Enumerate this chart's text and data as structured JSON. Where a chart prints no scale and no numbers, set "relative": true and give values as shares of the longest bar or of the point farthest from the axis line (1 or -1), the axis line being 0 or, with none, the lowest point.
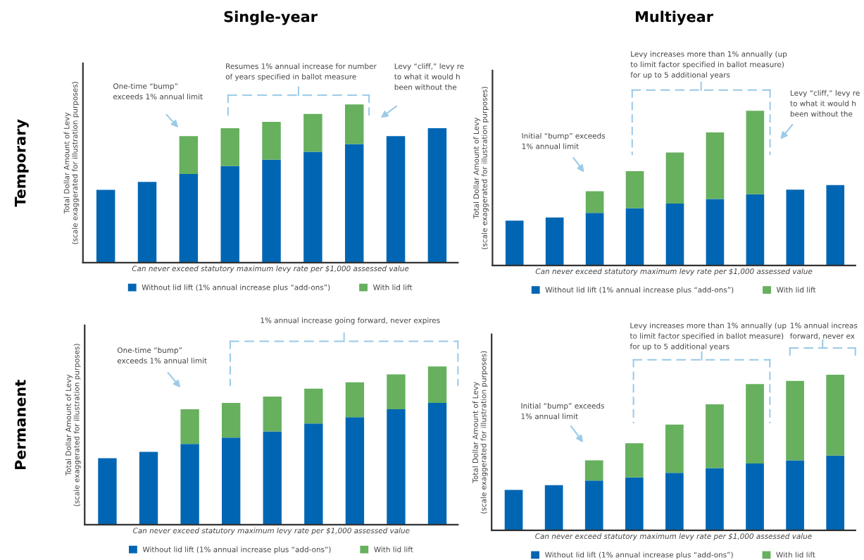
{
  "chart_data": [
    {
      "type": "bar",
      "title": "Single-year",
      "subtitle": "Temporary",
      "relative": true,
      "stacked": true,
      "legend": "bottom",
      "grid": false,
      "tick_labels": false,
      "ylabel": "Total Dollar Amount of Levy\n(scale exaggerated for illustration purposes)",
      "xlabel": "Can never exceed statutory maximum levy rate per $1,000 assessed value",
      "categories": [
        null,
        null,
        null,
        null,
        null,
        null,
        null,
        null,
        null
      ],
      "series": [
        {
          "name": "Without lid lift (1% annual increase plus “add-ons”)",
          "color": "#0066b3",
          "values": [
            0.46,
            0.51,
            0.56,
            0.61,
            0.65,
            0.7,
            0.75,
            0.8,
            0.85
          ]
        },
        {
          "name": "With lid lift",
          "color": "#66b05e",
          "values": [
            null,
            null,
            0.24,
            0.24,
            0.24,
            0.24,
            0.25,
            null,
            null
          ]
        }
      ],
      "annotations": [
        "One-time “bump”\nexceeds 1% annual limit",
        "Resumes 1% annual increase for number\nof years specified in ballot measure",
        "Levy “cliff,” levy re\nto what it would h\nbeen without the"
      ]
    },
    {
      "type": "bar",
      "title": "Multiyear",
      "relative": true,
      "stacked": true,
      "legend": "bottom",
      "grid": false,
      "tick_labels": false,
      "ylabel": "Total Dollar Amount of Levy\n(scale exaggerated for illustration purposes)",
      "xlabel": "Can never exceed statutory maximum levy rate per $1,000 assessed value",
      "categories": [
        null,
        null,
        null,
        null,
        null,
        null,
        null,
        null,
        null
      ],
      "series": [
        {
          "name": "Without lid lift (1% annual increase plus “add-ons”)",
          "color": "#0066b3",
          "values": [
            0.29,
            0.31,
            0.34,
            0.37,
            0.4,
            0.43,
            0.46,
            0.49,
            0.52
          ]
        },
        {
          "name": "With lid lift",
          "color": "#66b05e",
          "values": [
            null,
            null,
            0.14,
            0.24,
            0.33,
            0.43,
            0.54,
            null,
            null
          ]
        }
      ],
      "annotations": [
        "Initial “bump” exceeds\n1% annual limit",
        "Levy increases more than 1% annually (up\nto limit factor specified in ballot measure)\nfor up to 5 additional years",
        "Levy “cliff,” levy re\nto what it would h\nbeen without the"
      ]
    },
    {
      "type": "bar",
      "subtitle": "Permanent",
      "relative": true,
      "stacked": true,
      "legend": "bottom",
      "grid": false,
      "tick_labels": false,
      "ylabel": "Total Dollar Amount of Levy\n(scale exaggerated for illustration purposes)",
      "xlabel": "Can never exceed statutory maximum levy rate per $1,000 assessed value",
      "categories": [
        null,
        null,
        null,
        null,
        null,
        null,
        null,
        null,
        null
      ],
      "series": [
        {
          "name": "Without lid lift (1% annual increase plus “add-ons”)",
          "color": "#0066b3",
          "values": [
            0.42,
            0.46,
            0.51,
            0.55,
            0.59,
            0.64,
            0.68,
            0.73,
            0.77
          ]
        },
        {
          "name": "With lid lift",
          "color": "#66b05e",
          "values": [
            null,
            null,
            0.22,
            0.22,
            0.22,
            0.22,
            0.22,
            0.22,
            0.23
          ]
        }
      ],
      "annotations": [
        "One-time “bump”\nexceeds 1% annual limit",
        "1% annual increase going forward, never expires"
      ]
    },
    {
      "type": "bar",
      "relative": true,
      "stacked": true,
      "legend": "bottom",
      "grid": false,
      "tick_labels": false,
      "ylabel": "Total Dollar Amount of Levy\n(scale exaggerated for illustration purposes)",
      "xlabel": "Can never exceed statutory maximum levy rate per $1,000 assessed value",
      "categories": [
        null,
        null,
        null,
        null,
        null,
        null,
        null,
        null,
        null
      ],
      "series": [
        {
          "name": "Without lid lift (1% annual increase plus “add-ons”)",
          "color": "#0066b3",
          "values": [
            0.26,
            0.29,
            0.32,
            0.34,
            0.37,
            0.4,
            0.43,
            0.45,
            0.48
          ]
        },
        {
          "name": "With lid lift",
          "color": "#66b05e",
          "values": [
            null,
            null,
            0.13,
            0.22,
            0.31,
            0.41,
            0.51,
            0.51,
            0.52
          ]
        }
      ],
      "annotations": [
        "Initial “bump” exceeds\n1% annual limit",
        "Levy increases more than 1% annually (up\nto limit factor specified in ballot measure)\nfor up to 5 additional years",
        "1% annual increas\nforward, never ex"
      ]
    }
  ]
}
